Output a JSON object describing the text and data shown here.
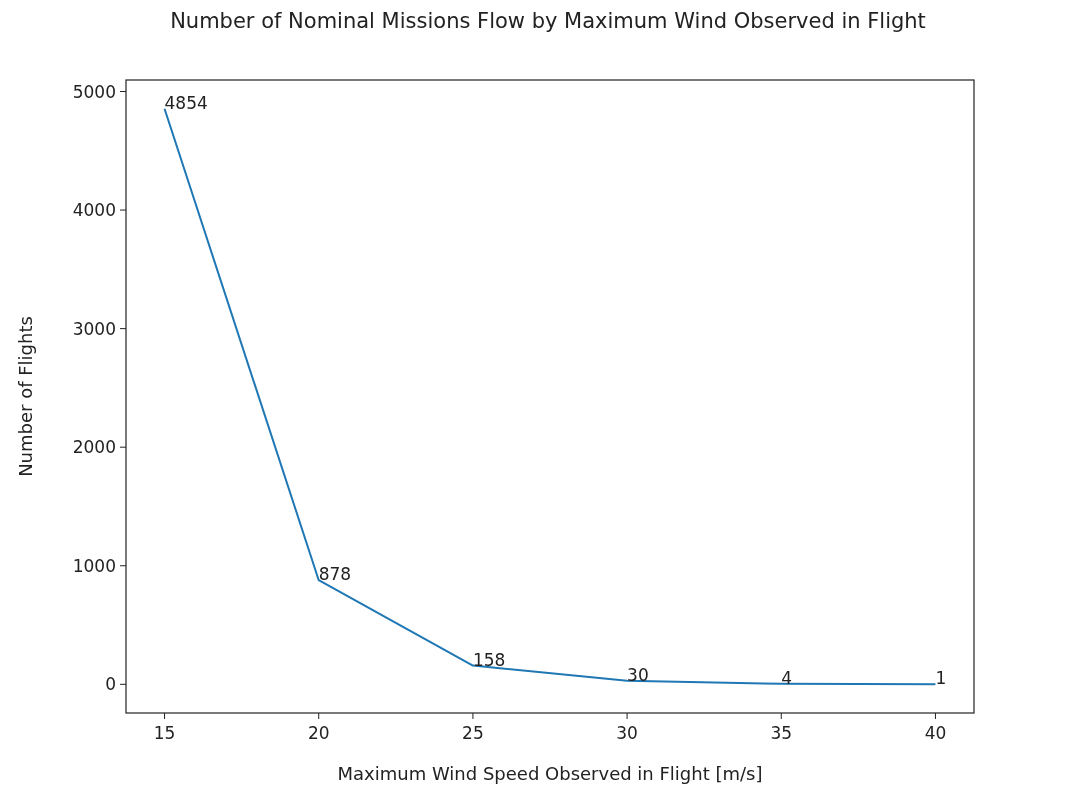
{
  "chart_data": {
    "type": "line",
    "title": "Number of Nominal Missions Flow by Maximum Wind Observed in Flight",
    "xlabel": "Maximum Wind Speed Observed in Flight [m/s]",
    "ylabel": "Number of Flights",
    "x": [
      15,
      20,
      25,
      30,
      35,
      40
    ],
    "series": [
      {
        "color": "#1f77b4",
        "values": [
          4854,
          878,
          158,
          30,
          4,
          1
        ]
      }
    ],
    "data_labels": true,
    "grid": false,
    "marker": "none",
    "line_style": "solid",
    "xlim": [
      13.75,
      41.25
    ],
    "xticks": [
      15,
      20,
      25,
      30,
      35,
      40
    ],
    "ylim": [
      -242,
      5097
    ],
    "yticks": [
      0,
      1000,
      2000,
      3000,
      4000,
      5000
    ]
  }
}
